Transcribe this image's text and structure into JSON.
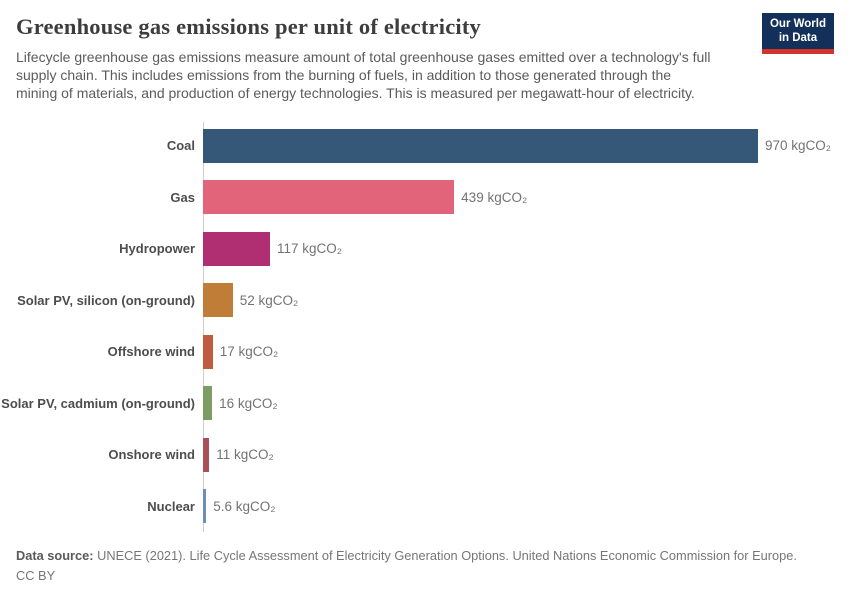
{
  "header": {
    "title": "Greenhouse gas emissions per unit of electricity",
    "subtitle_lines": [
      "Lifecycle greenhouse gas emissions measure amount of total greenhouse gases emitted over a technology's full",
      "supply chain. This includes emissions from the burning of fuels, in addition to those generated through the",
      "mining of materials, and production of energy technologies. This is measured per megawatt-hour of electricity."
    ],
    "logo": {
      "line1": "Our World",
      "line2": "in Data",
      "bg_color": "#12305a",
      "accent_color": "#d0342c"
    }
  },
  "chart_data": {
    "type": "bar",
    "orientation": "horizontal",
    "title": "Greenhouse gas emissions per unit of electricity",
    "categories": [
      "Coal",
      "Gas",
      "Hydropower",
      "Solar PV, silicon (on-ground)",
      "Offshore wind",
      "Solar PV, cadmium (on-ground)",
      "Onshore wind",
      "Nuclear"
    ],
    "values": [
      970,
      439,
      117,
      52,
      17,
      16,
      11,
      5.6
    ],
    "value_labels": [
      "970 kgCO₂",
      "439 kgCO₂",
      "117 kgCO₂",
      "52 kgCO₂",
      "17 kgCO₂",
      "16 kgCO₂",
      "11 kgCO₂",
      "5.6 kgCO₂"
    ],
    "bar_colors": [
      "#355778",
      "#e1647b",
      "#b02f73",
      "#c07d38",
      "#c15b3f",
      "#7b9c62",
      "#a85056",
      "#6e8eb9"
    ],
    "xlim": [
      0,
      970
    ],
    "grid": false,
    "legend": false,
    "axis_line_color": "#cccccc"
  },
  "footer": {
    "source_label": "Data source:",
    "source_text": " UNECE (2021). Life Cycle Assessment of Electricity Generation Options. United Nations Economic Commission for Europe.",
    "license": "CC BY"
  }
}
